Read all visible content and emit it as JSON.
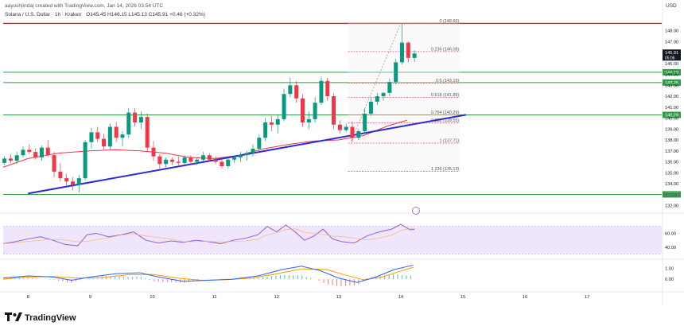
{
  "header": {
    "attribution": "aayush|inda| created with TradingView.com, Jan 14, 2026 03:54 UTC",
    "symbol_line": "Solana / U.S. Dollar · 1h · Kraken",
    "ohlc": "O145.45 H146.15 L145.13 C145.91 +0.46 (+0.32%)"
  },
  "footer": {
    "brand": "TradingView",
    "logo": "tradingview-logo"
  },
  "colors": {
    "up": "#089981",
    "down": "#f23645",
    "ma": "#f23645",
    "trendline": "#2b2bd6",
    "hline": "#2e9e44",
    "resistance": "#e0173a",
    "fib": "#e05a6a",
    "price_tag": "#131722",
    "rsi": "#8e5cd8",
    "rsi_band": "#efe6fb",
    "macd": "#2962ff",
    "signal": "#ff9800"
  },
  "chart_data": {
    "type": "candlestick",
    "currency": "USD",
    "xticks": [
      "8",
      "9",
      "10",
      "11",
      "12",
      "13",
      "14",
      "15",
      "16",
      "17"
    ],
    "yticks": [
      "148.00",
      "147.00",
      "146.00",
      "145.00",
      "144.00",
      "143.00",
      "142.00",
      "141.00",
      "140.00",
      "139.00",
      "138.00",
      "137.00",
      "136.00",
      "135.00",
      "134.00",
      "133.00",
      "132.00"
    ],
    "ylim": [
      131.6,
      149.2
    ],
    "xlim": [
      7.6,
      18.2
    ],
    "last_price": {
      "value": "145.91",
      "countdown": "05:06"
    },
    "horizontal_levels": [
      {
        "label": "144.19",
        "value": 144.19
      },
      {
        "label": "143.25",
        "value": 143.25
      },
      {
        "label": "140.29",
        "value": 140.29
      },
      {
        "label": "133.02",
        "value": 133.02
      }
    ],
    "resistance": {
      "value": 148.66
    },
    "fibonacci": [
      {
        "label": "0 (148.66)",
        "value": 148.66
      },
      {
        "label": "0.236 (146.08)",
        "value": 146.08
      },
      {
        "label": "0.5 (143.19)",
        "value": 143.19
      },
      {
        "label": "0.618 (141.89)",
        "value": 141.89
      },
      {
        "label": "0.764 (140.29)",
        "value": 140.29
      },
      {
        "label": "0.832 (139.55)",
        "value": 139.55
      },
      {
        "label": "1 (137.71)",
        "value": 137.71
      },
      {
        "label": "1.236 (135.13)",
        "value": 135.13
      }
    ],
    "fib_x_range": [
      13.15,
      14.95
    ],
    "trendline": [
      [
        8.0,
        133.1
      ],
      [
        15.05,
        140.3
      ]
    ],
    "moving_average": [
      [
        7.6,
        135.5
      ],
      [
        8.0,
        136.3
      ],
      [
        8.5,
        136.8
      ],
      [
        9.0,
        137.0
      ],
      [
        9.4,
        137.1
      ],
      [
        9.8,
        137.0
      ],
      [
        10.2,
        136.8
      ],
      [
        10.6,
        136.4
      ],
      [
        11.0,
        136.3
      ],
      [
        11.4,
        136.6
      ],
      [
        11.8,
        137.2
      ],
      [
        12.2,
        137.6
      ],
      [
        12.6,
        137.9
      ],
      [
        13.0,
        138.0
      ],
      [
        13.4,
        138.4
      ],
      [
        13.8,
        139.3
      ],
      [
        14.1,
        139.8
      ]
    ],
    "candles": [
      [
        7.62,
        135.9,
        136.5,
        135.7,
        136.3
      ],
      [
        7.72,
        136.3,
        136.7,
        135.9,
        136.1
      ],
      [
        7.82,
        136.1,
        136.9,
        135.8,
        136.6
      ],
      [
        7.92,
        136.6,
        137.4,
        136.4,
        137.1
      ],
      [
        8.02,
        137.1,
        137.6,
        136.7,
        136.9
      ],
      [
        8.12,
        136.9,
        137.2,
        136.2,
        136.4
      ],
      [
        8.22,
        136.4,
        137.5,
        136.1,
        137.3
      ],
      [
        8.32,
        137.3,
        138.0,
        136.5,
        136.6
      ],
      [
        8.42,
        136.6,
        136.9,
        134.6,
        135.1
      ],
      [
        8.52,
        135.1,
        135.9,
        134.2,
        134.5
      ],
      [
        8.62,
        134.5,
        134.9,
        133.8,
        134.2
      ],
      [
        8.72,
        134.2,
        134.6,
        133.4,
        133.9
      ],
      [
        8.82,
        133.9,
        134.8,
        133.2,
        134.5
      ],
      [
        8.92,
        134.5,
        138.0,
        134.3,
        137.8
      ],
      [
        9.02,
        137.8,
        139.1,
        137.2,
        138.7
      ],
      [
        9.12,
        138.7,
        139.2,
        137.8,
        138.1
      ],
      [
        9.22,
        138.1,
        138.6,
        137.1,
        137.4
      ],
      [
        9.32,
        137.4,
        139.5,
        137.1,
        139.2
      ],
      [
        9.42,
        139.2,
        139.6,
        137.8,
        138.2
      ],
      [
        9.52,
        138.2,
        138.8,
        137.4,
        138.5
      ],
      [
        9.62,
        138.5,
        140.9,
        138.2,
        140.5
      ],
      [
        9.72,
        140.5,
        140.9,
        139.2,
        139.6
      ],
      [
        9.82,
        139.6,
        140.6,
        139.0,
        140.1
      ],
      [
        9.92,
        140.1,
        140.4,
        136.9,
        137.3
      ],
      [
        10.02,
        137.3,
        137.9,
        136.1,
        136.5
      ],
      [
        10.12,
        136.5,
        136.7,
        135.4,
        135.8
      ],
      [
        10.22,
        135.8,
        136.4,
        135.5,
        136.2
      ],
      [
        10.32,
        136.2,
        136.4,
        135.7,
        136.0
      ],
      [
        10.42,
        136.0,
        136.5,
        135.6,
        135.9
      ],
      [
        10.52,
        135.9,
        136.6,
        135.7,
        136.4
      ],
      [
        10.62,
        136.4,
        136.6,
        135.8,
        136.0
      ],
      [
        10.72,
        136.0,
        136.4,
        135.7,
        136.2
      ],
      [
        10.82,
        136.2,
        136.9,
        136.0,
        136.6
      ],
      [
        10.92,
        136.6,
        136.8,
        136.0,
        136.2
      ],
      [
        11.02,
        136.2,
        136.5,
        135.8,
        136.0
      ],
      [
        11.12,
        136.0,
        136.3,
        135.4,
        135.6
      ],
      [
        11.22,
        135.6,
        136.4,
        135.4,
        136.2
      ],
      [
        11.32,
        136.2,
        136.6,
        135.9,
        136.4
      ],
      [
        11.42,
        136.4,
        136.9,
        136.0,
        136.6
      ],
      [
        11.52,
        136.6,
        137.0,
        136.1,
        136.8
      ],
      [
        11.62,
        136.8,
        137.6,
        136.5,
        137.2
      ],
      [
        11.72,
        137.2,
        138.5,
        137.0,
        138.2
      ],
      [
        11.82,
        138.2,
        140.0,
        137.9,
        139.6
      ],
      [
        11.92,
        139.6,
        140.2,
        138.8,
        139.4
      ],
      [
        12.02,
        139.4,
        140.3,
        138.6,
        139.9
      ],
      [
        12.12,
        139.9,
        142.7,
        139.7,
        142.2
      ],
      [
        12.22,
        142.2,
        143.7,
        141.9,
        143.0
      ],
      [
        12.32,
        143.0,
        143.4,
        141.4,
        141.8
      ],
      [
        12.42,
        141.8,
        142.2,
        139.2,
        139.6
      ],
      [
        12.52,
        139.6,
        140.6,
        139.0,
        139.9
      ],
      [
        12.62,
        139.9,
        141.9,
        139.6,
        141.4
      ],
      [
        12.72,
        141.4,
        143.8,
        141.2,
        143.4
      ],
      [
        12.82,
        143.4,
        143.7,
        141.6,
        142.0
      ],
      [
        12.92,
        142.0,
        142.3,
        139.0,
        139.4
      ],
      [
        13.02,
        139.4,
        139.8,
        138.6,
        138.9
      ],
      [
        13.12,
        138.9,
        139.5,
        138.7,
        139.2
      ],
      [
        13.22,
        139.2,
        139.7,
        137.8,
        138.2
      ],
      [
        13.32,
        138.2,
        139.0,
        138.0,
        138.8
      ],
      [
        13.42,
        138.8,
        140.9,
        138.6,
        140.4
      ],
      [
        13.52,
        140.4,
        141.9,
        140.2,
        141.5
      ],
      [
        13.62,
        141.5,
        142.3,
        141.2,
        142.0
      ],
      [
        13.72,
        142.0,
        142.4,
        141.6,
        142.3
      ],
      [
        13.82,
        142.3,
        143.6,
        142.0,
        143.3
      ],
      [
        13.92,
        143.3,
        145.4,
        143.1,
        145.1
      ],
      [
        14.02,
        145.1,
        148.66,
        144.9,
        146.9
      ],
      [
        14.12,
        146.9,
        147.0,
        145.1,
        145.5
      ],
      [
        14.22,
        145.5,
        146.2,
        145.13,
        145.91
      ]
    ],
    "rsi": {
      "yticks": [
        "60.00",
        "40.00"
      ],
      "ylim": [
        25,
        80
      ],
      "band": [
        30,
        70
      ],
      "values": [
        [
          7.6,
          45
        ],
        [
          7.8,
          48
        ],
        [
          8.0,
          52
        ],
        [
          8.2,
          55
        ],
        [
          8.4,
          50
        ],
        [
          8.6,
          44
        ],
        [
          8.8,
          42
        ],
        [
          8.95,
          58
        ],
        [
          9.1,
          60
        ],
        [
          9.3,
          55
        ],
        [
          9.5,
          58
        ],
        [
          9.7,
          62
        ],
        [
          9.9,
          50
        ],
        [
          10.1,
          46
        ],
        [
          10.3,
          49
        ],
        [
          10.5,
          47
        ],
        [
          10.7,
          50
        ],
        [
          10.9,
          48
        ],
        [
          11.1,
          45
        ],
        [
          11.3,
          50
        ],
        [
          11.5,
          53
        ],
        [
          11.7,
          58
        ],
        [
          11.85,
          70
        ],
        [
          12.0,
          62
        ],
        [
          12.15,
          72
        ],
        [
          12.3,
          62
        ],
        [
          12.45,
          50
        ],
        [
          12.6,
          56
        ],
        [
          12.75,
          66
        ],
        [
          12.9,
          52
        ],
        [
          13.05,
          48
        ],
        [
          13.25,
          46
        ],
        [
          13.45,
          56
        ],
        [
          13.65,
          62
        ],
        [
          13.85,
          66
        ],
        [
          14.0,
          73
        ],
        [
          14.15,
          65
        ],
        [
          14.22,
          66
        ]
      ]
    },
    "macd": {
      "yticks": [
        "1.00",
        "0.00"
      ],
      "ylim": [
        -0.8,
        1.7
      ],
      "macd_line": [
        [
          7.6,
          0.1
        ],
        [
          8.0,
          0.3
        ],
        [
          8.4,
          0.2
        ],
        [
          8.7,
          -0.1
        ],
        [
          9.0,
          0.2
        ],
        [
          9.4,
          0.5
        ],
        [
          9.8,
          0.6
        ],
        [
          10.1,
          0.2
        ],
        [
          10.5,
          -0.2
        ],
        [
          10.9,
          -0.1
        ],
        [
          11.3,
          0.0
        ],
        [
          11.7,
          0.3
        ],
        [
          12.1,
          0.9
        ],
        [
          12.4,
          1.2
        ],
        [
          12.7,
          0.8
        ],
        [
          13.0,
          0.1
        ],
        [
          13.3,
          -0.3
        ],
        [
          13.6,
          0.2
        ],
        [
          13.9,
          0.9
        ],
        [
          14.2,
          1.3
        ]
      ],
      "signal_line": [
        [
          7.6,
          0.0
        ],
        [
          8.0,
          0.2
        ],
        [
          8.4,
          0.25
        ],
        [
          8.8,
          0.1
        ],
        [
          9.2,
          0.15
        ],
        [
          9.6,
          0.4
        ],
        [
          10.0,
          0.45
        ],
        [
          10.4,
          0.1
        ],
        [
          10.8,
          -0.1
        ],
        [
          11.2,
          -0.05
        ],
        [
          11.6,
          0.1
        ],
        [
          12.0,
          0.5
        ],
        [
          12.4,
          0.95
        ],
        [
          12.8,
          0.9
        ],
        [
          13.1,
          0.4
        ],
        [
          13.4,
          -0.05
        ],
        [
          13.7,
          0.2
        ],
        [
          14.0,
          0.75
        ],
        [
          14.2,
          1.1
        ]
      ]
    }
  }
}
